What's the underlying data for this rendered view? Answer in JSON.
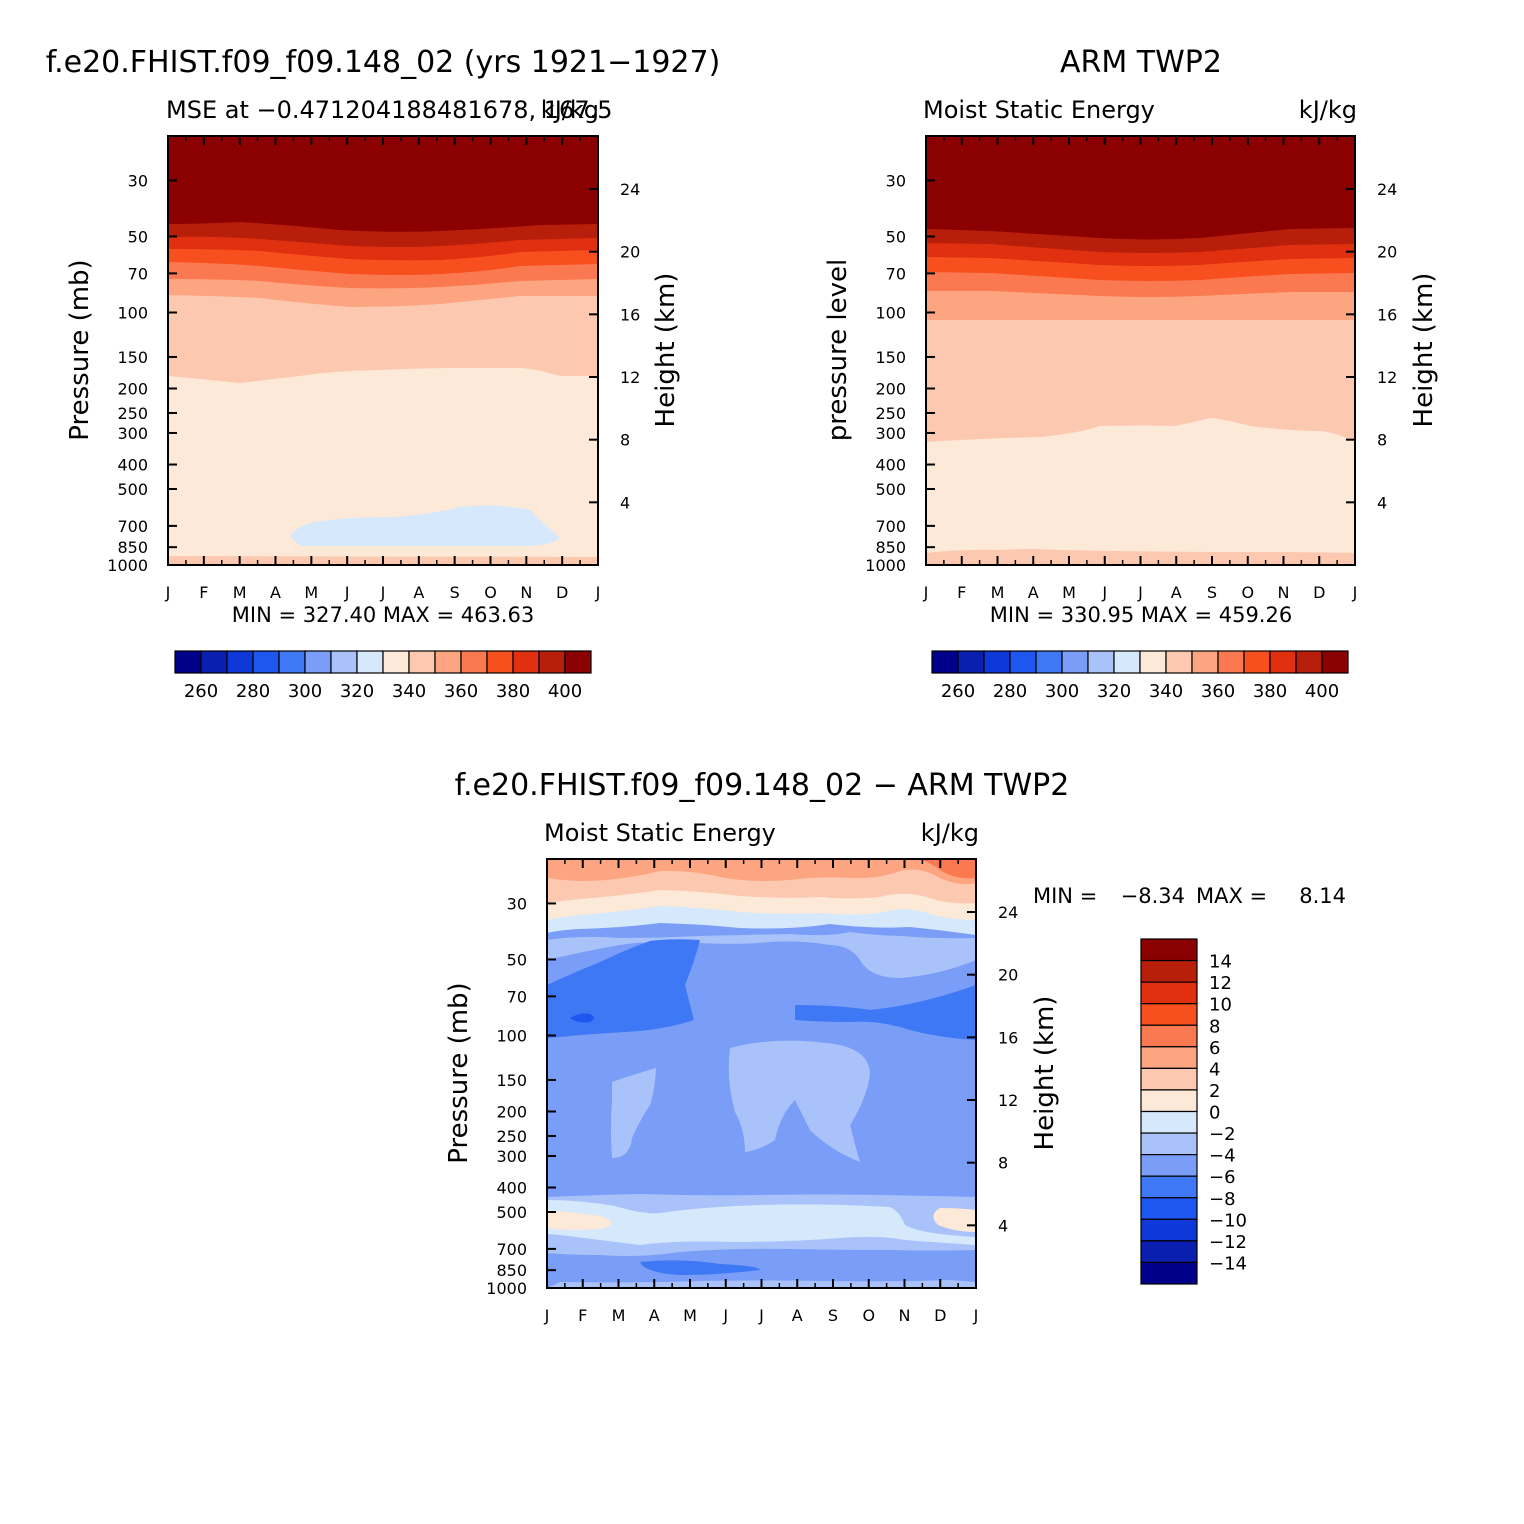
{
  "chart_data": [
    {
      "type": "heatmap",
      "title": "f.e20.FHIST.f09_f09.148_02 (yrs 1921−1927)",
      "subtitle_left": "MSE at −0.471204188481678,  167.5",
      "subtitle_right": "kJ/kg",
      "ylabel": "Pressure (mb)",
      "ylabel_right": "Height (km)",
      "x": [
        "J",
        "F",
        "M",
        "A",
        "M",
        "J",
        "J",
        "A",
        "S",
        "O",
        "N",
        "D",
        "J"
      ],
      "p_ticks": [
        30,
        50,
        70,
        100,
        150,
        200,
        250,
        300,
        400,
        500,
        700,
        850,
        1000
      ],
      "z_ticks": [
        24,
        20,
        16,
        12,
        8,
        4
      ],
      "min_max_text": "MIN =  327.40  MAX =  463.63",
      "min": 327.4,
      "max": 463.63,
      "colorbar_labels": [
        "260",
        "280",
        "300",
        "320",
        "340",
        "360",
        "380",
        "400"
      ],
      "colors": [
        "#00008b",
        "#0a1fb0",
        "#0f38d8",
        "#1e56f0",
        "#3f78f5",
        "#7a9ef7",
        "#a9c3fa",
        "#d6e8fb",
        "#fde9d8",
        "#fcc9b0",
        "#fca580",
        "#fb7950",
        "#f84f1e",
        "#e03010",
        "#b81f0a",
        "#8b0000"
      ],
      "contour_levels_kJkg": [
        400,
        390,
        380,
        370,
        360,
        350,
        340,
        330
      ],
      "notes_fields": "MSE decreases from >400 kJ/kg above ~60 mb to ~340 kJ/kg in the mid troposphere; a small region below 330 kJ/kg near 750 mb from April to December"
    },
    {
      "type": "heatmap",
      "title": "ARM TWP2",
      "subtitle_left": "Moist Static Energy",
      "subtitle_right": "kJ/kg",
      "ylabel": "pressure level",
      "ylabel_right": "Height (km)",
      "x": [
        "J",
        "F",
        "M",
        "A",
        "M",
        "J",
        "J",
        "A",
        "S",
        "O",
        "N",
        "D",
        "J"
      ],
      "p_ticks": [
        30,
        50,
        70,
        100,
        150,
        200,
        250,
        300,
        400,
        500,
        700,
        850,
        1000
      ],
      "z_ticks": [
        24,
        20,
        16,
        12,
        8,
        4
      ],
      "min_max_text": "MIN =  330.95  MAX =  459.26",
      "min": 330.95,
      "max": 459.26,
      "colorbar_labels": [
        "260",
        "280",
        "300",
        "320",
        "340",
        "360",
        "380",
        "400"
      ],
      "colors": [
        "#00008b",
        "#0a1fb0",
        "#0f38d8",
        "#1e56f0",
        "#3f78f5",
        "#7a9ef7",
        "#a9c3fa",
        "#d6e8fb",
        "#fde9d8",
        "#fcc9b0",
        "#fca580",
        "#fb7950",
        "#f84f1e",
        "#e03010",
        "#b81f0a",
        "#8b0000"
      ]
    },
    {
      "type": "heatmap",
      "title": "f.e20.FHIST.f09_f09.148_02 − ARM TWP2",
      "subtitle_left": "Moist Static Energy",
      "subtitle_right": "kJ/kg",
      "ylabel": "Pressure (mb)",
      "ylabel_right": "Height (km)",
      "x": [
        "J",
        "F",
        "M",
        "A",
        "M",
        "J",
        "J",
        "A",
        "S",
        "O",
        "N",
        "D",
        "J"
      ],
      "p_ticks": [
        30,
        50,
        70,
        100,
        150,
        200,
        250,
        300,
        400,
        500,
        700,
        850,
        1000
      ],
      "z_ticks": [
        24,
        20,
        16,
        12,
        8,
        4
      ],
      "min_text": "MIN =",
      "min_value": "−8.34",
      "max_text": "MAX =",
      "max_value": "8.14",
      "min": -8.34,
      "max": 8.14,
      "colorbar_labels": [
        "14",
        "12",
        "10",
        "8",
        "6",
        "4",
        "2",
        "0",
        "−2",
        "−4",
        "−6",
        "−8",
        "−10",
        "−12",
        "−14"
      ],
      "colors": [
        "#8b0000",
        "#b81f0a",
        "#e03010",
        "#f84f1e",
        "#fb7950",
        "#fca580",
        "#fcc9b0",
        "#fde9d8",
        "#d6e8fb",
        "#a9c3fa",
        "#7a9ef7",
        "#3f78f5",
        "#1e56f0",
        "#0f38d8",
        "#0a1fb0",
        "#00008b"
      ]
    }
  ]
}
